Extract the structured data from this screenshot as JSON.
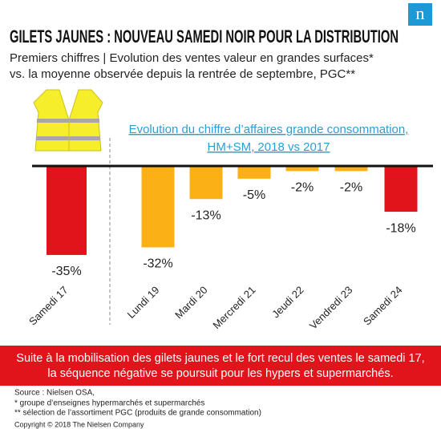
{
  "header": {
    "title": "GILETS JAUNES : NOUVEAU SAMEDI NOIR POUR LA DISTRIBUTION",
    "logo": "n",
    "subtitle": [
      "Premiers chiffres | Evolution des ventes valeur en grandes surfaces*",
      "vs. la moyenne observée depuis la rentrée de septembre, PGC**"
    ]
  },
  "chart_data": {
    "type": "bar",
    "title": [
      "Evolution du chiffre d’affaires grande consommation,",
      "HM+SM, 2018 vs 2017"
    ],
    "categories": [
      "Samedi 17",
      "Lundi 19",
      "Mardi 20",
      "Mercredi 21",
      "Jeudi 22",
      "Vendredi 23",
      "Samedi 24"
    ],
    "values": [
      -35,
      -32,
      -13,
      -5,
      -2,
      -2,
      -18
    ],
    "value_labels": [
      "-35%",
      "-32%",
      "-13%",
      "-5%",
      "-2%",
      "-2%",
      "-18%"
    ],
    "colors": [
      "#e1141c",
      "#fbb116",
      "#fbb116",
      "#fbb116",
      "#fbb116",
      "#fbb116",
      "#e1141c"
    ]
  },
  "banner": [
    "Suite à la mobilisation des gilets jaunes et le fort recul des ventes le samedi 17,",
    "la séquence négative se poursuit pour les hypers et supermarchés."
  ],
  "footer": {
    "notes": [
      "Source : Nielsen OSA,",
      "* groupe d’enseignes  hypermarchés  et supermarchés",
      "** sélection de l’assortiment  PGC (produits de grande consommation)"
    ],
    "copyright": "Copyright © 2018 The Nielsen Company"
  }
}
